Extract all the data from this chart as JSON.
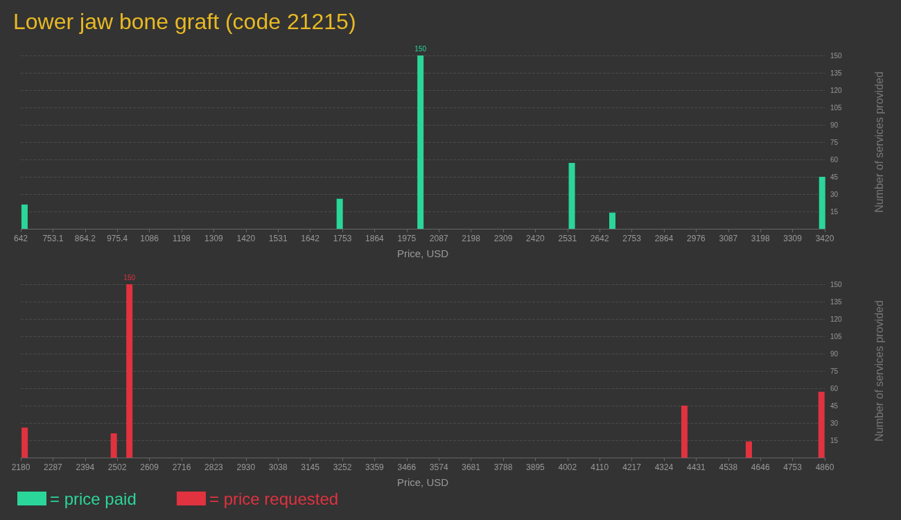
{
  "chart_data": [
    {
      "type": "bar",
      "title": "Lower jaw bone graft (code 21215)",
      "xlabel": "Price, USD",
      "ylabel": "Number of services provided",
      "x": [
        655,
        1744,
        2023,
        2546,
        2686,
        3411
      ],
      "series": [
        {
          "name": "= price paid",
          "color": "#2ad69a",
          "values": [
            21,
            26,
            150,
            57,
            14,
            45
          ],
          "value_labels": [
            null,
            null,
            "150",
            null,
            null,
            null
          ]
        }
      ],
      "xlim": [
        642,
        3420
      ],
      "xticks": [
        642,
        {
          "value": 753.12,
          "label": "753.1"
        },
        {
          "value": 864.24,
          "label": "864.2"
        },
        {
          "value": 975.36,
          "label": "975.4"
        },
        {
          "value": 1086.48,
          "label": "1086"
        },
        {
          "value": 1197.6,
          "label": "1198"
        },
        {
          "value": 1308.72,
          "label": "1309"
        },
        {
          "value": 1419.84,
          "label": "1420"
        },
        {
          "value": 1530.96,
          "label": "1531"
        },
        {
          "value": 1642.08,
          "label": "1642"
        },
        {
          "value": 1753.2,
          "label": "1753"
        },
        {
          "value": 1864.32,
          "label": "1864"
        },
        {
          "value": 1975.44,
          "label": "1975"
        },
        {
          "value": 2086.56,
          "label": "2087"
        },
        {
          "value": 2197.68,
          "label": "2198"
        },
        {
          "value": 2308.8,
          "label": "2309"
        },
        {
          "value": 2419.92,
          "label": "2420"
        },
        {
          "value": 2531.04,
          "label": "2531"
        },
        {
          "value": 2642.16,
          "label": "2642"
        },
        {
          "value": 2753.28,
          "label": "2753"
        },
        {
          "value": 2864.4,
          "label": "2864"
        },
        {
          "value": 2975.52,
          "label": "2976"
        },
        {
          "value": 3086.64,
          "label": "3087"
        },
        {
          "value": 3197.76,
          "label": "3198"
        },
        {
          "value": 3308.88,
          "label": "3309"
        },
        3420
      ],
      "ylim": [
        0,
        150
      ],
      "yticks": [
        15,
        30,
        45,
        60,
        75,
        90,
        105,
        120,
        135,
        150
      ],
      "grid": "y",
      "legend": "bottom left"
    },
    {
      "type": "bar",
      "xlabel": "Price, USD",
      "ylabel": "Number of services provided",
      "x": [
        2193,
        2490,
        2542,
        4392,
        4607,
        4849
      ],
      "series": [
        {
          "name": "= price requested",
          "color": "#e0323f",
          "values": [
            26,
            21,
            150,
            45,
            14,
            57
          ],
          "value_labels": [
            null,
            null,
            "150",
            null,
            null,
            null
          ]
        }
      ],
      "xlim": [
        2180,
        4860
      ],
      "xticks": [
        2180,
        {
          "value": 2287.2,
          "label": "2287"
        },
        {
          "value": 2394.4,
          "label": "2394"
        },
        {
          "value": 2501.6,
          "label": "2502"
        },
        {
          "value": 2608.8,
          "label": "2609"
        },
        2716,
        {
          "value": 2823.2,
          "label": "2823"
        },
        {
          "value": 2930.4,
          "label": "2930"
        },
        {
          "value": 3037.6,
          "label": "3038"
        },
        {
          "value": 3144.8,
          "label": "3145"
        },
        3252,
        {
          "value": 3359.2,
          "label": "3359"
        },
        {
          "value": 3466.4,
          "label": "3466"
        },
        {
          "value": 3573.6,
          "label": "3574"
        },
        {
          "value": 3680.8,
          "label": "3681"
        },
        3788,
        {
          "value": 3895.2,
          "label": "3895"
        },
        {
          "value": 4002.4,
          "label": "4002"
        },
        {
          "value": 4109.6,
          "label": "4110"
        },
        {
          "value": 4216.8,
          "label": "4217"
        },
        4324,
        {
          "value": 4431.2,
          "label": "4431"
        },
        {
          "value": 4538.4,
          "label": "4538"
        },
        {
          "value": 4645.6,
          "label": "4646"
        },
        {
          "value": 4752.8,
          "label": "4753"
        },
        4860
      ],
      "ylim": [
        0,
        150
      ],
      "yticks": [
        15,
        30,
        45,
        60,
        75,
        90,
        105,
        120,
        135,
        150
      ],
      "grid": "y",
      "legend": "bottom left"
    }
  ]
}
